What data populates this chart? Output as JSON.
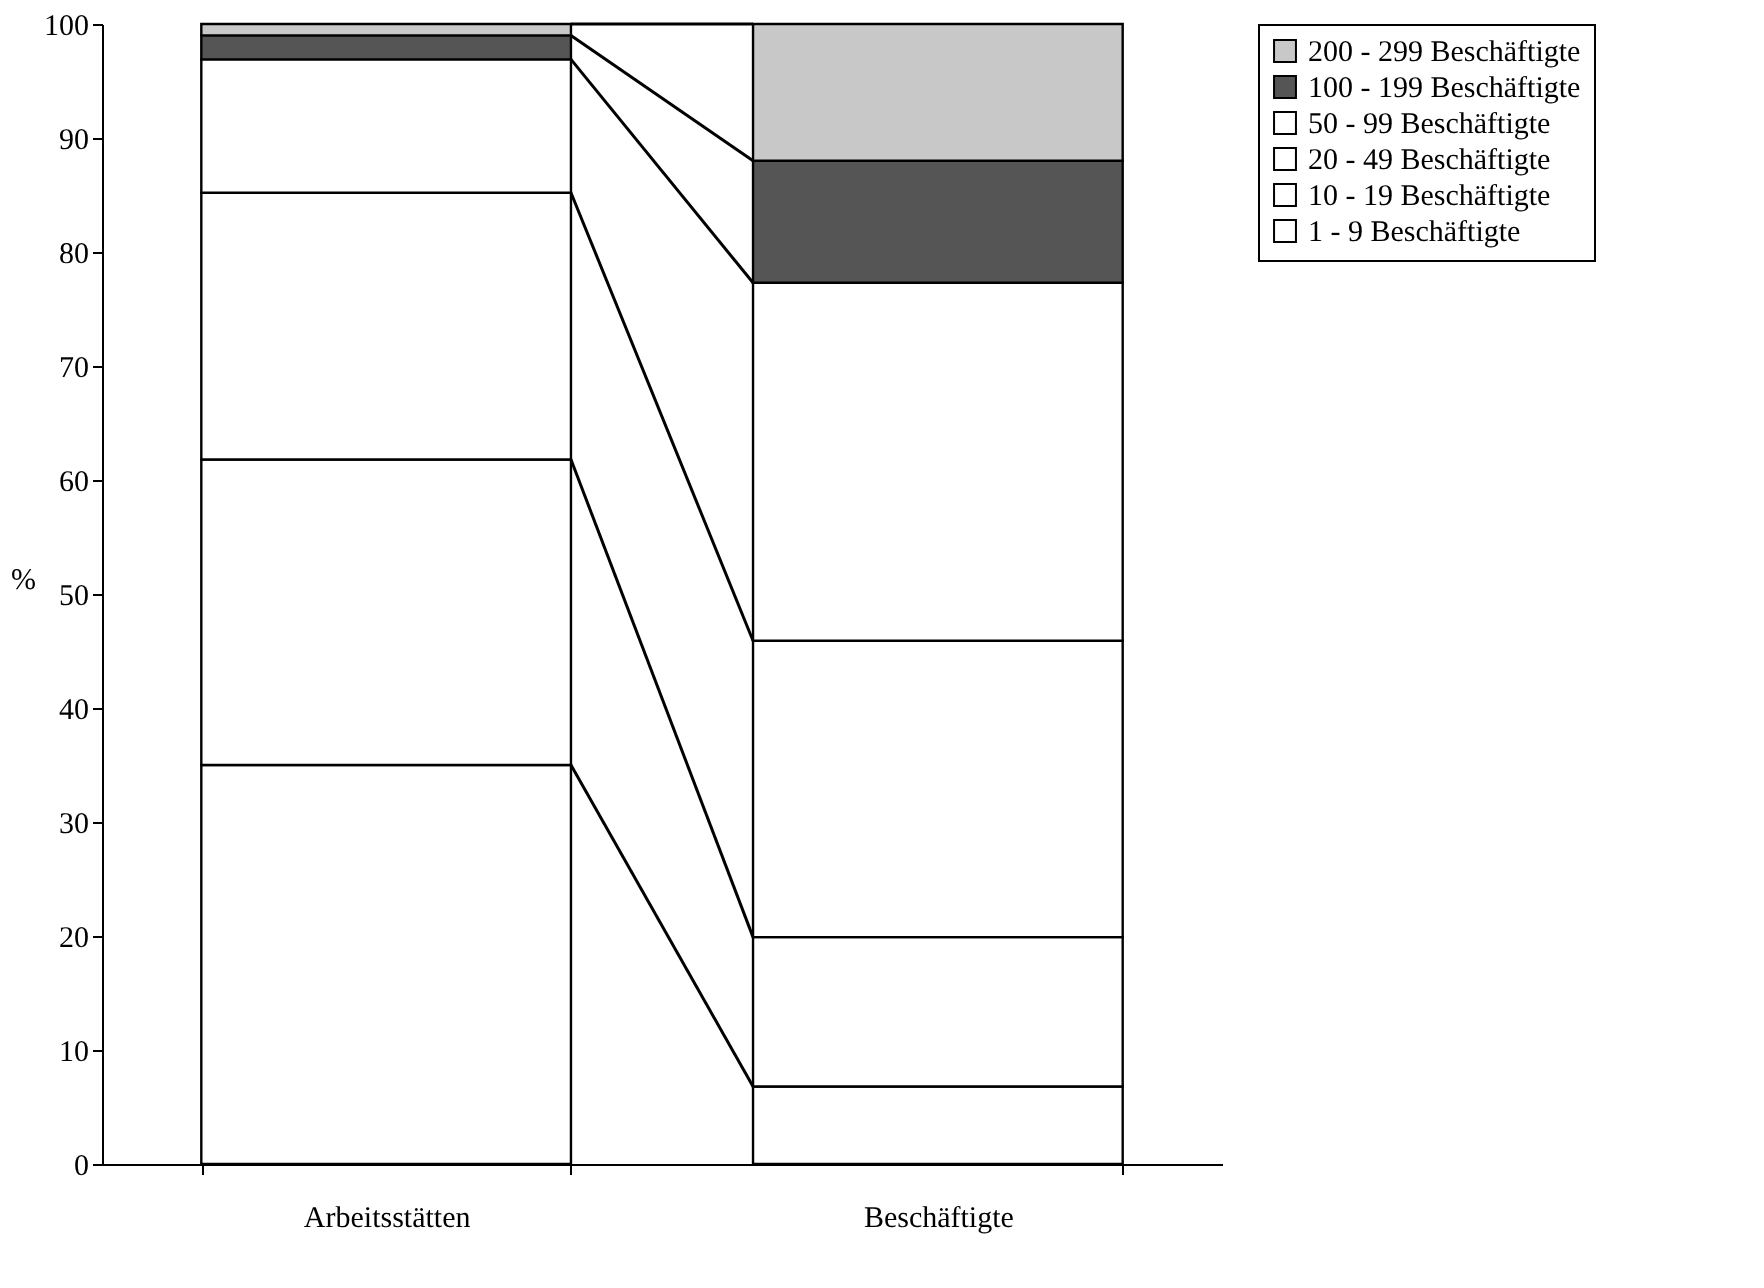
{
  "chart_data": {
    "type": "bar",
    "stacked": true,
    "ylabel": "%",
    "categories": [
      "Arbeitsstätten",
      "Beschäftigte"
    ],
    "series": [
      {
        "name": "1 - 9 Beschäftigte",
        "color": "#ffffff",
        "values": [
          35.0,
          6.8
        ]
      },
      {
        "name": "10 - 19 Beschäftigte",
        "color": "#ffffff",
        "values": [
          26.8,
          13.1
        ]
      },
      {
        "name": "20 - 49 Beschäftigte",
        "color": "#ffffff",
        "values": [
          23.4,
          26.0
        ]
      },
      {
        "name": "50 - 99 Beschäftigte",
        "color": "#ffffff",
        "values": [
          11.7,
          31.4
        ]
      },
      {
        "name": "100 - 199 Beschäftigte",
        "color": "#555555",
        "values": [
          2.1,
          10.7
        ]
      },
      {
        "name": "200 - 299 Beschäftigte",
        "color": "#c8c8c8",
        "values": [
          1.0,
          12.0
        ]
      }
    ],
    "ylim": [
      0,
      100
    ],
    "yticks": [
      0,
      10,
      20,
      30,
      40,
      50,
      60,
      70,
      80,
      90,
      100
    ],
    "grid": false,
    "legend": "right"
  }
}
